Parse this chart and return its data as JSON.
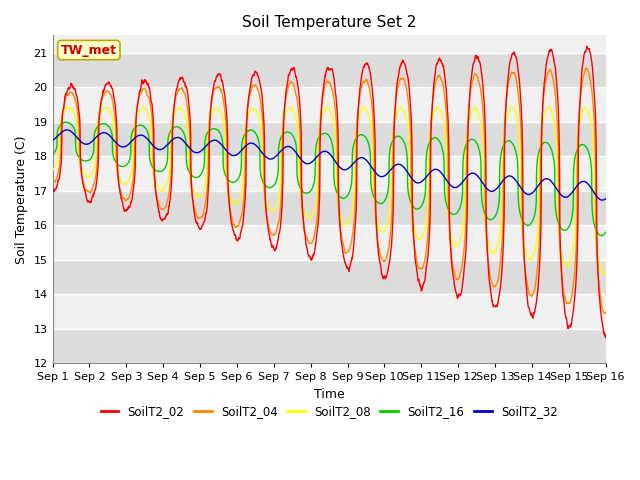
{
  "title": "Soil Temperature Set 2",
  "xlabel": "Time",
  "ylabel": "Soil Temperature (C)",
  "ylim": [
    12.0,
    21.5
  ],
  "yticks": [
    12.0,
    13.0,
    14.0,
    15.0,
    16.0,
    17.0,
    18.0,
    19.0,
    20.0,
    21.0
  ],
  "xtick_labels": [
    "Sep 1",
    "Sep 2",
    "Sep 3",
    "Sep 4",
    "Sep 5",
    "Sep 6",
    "Sep 7",
    "Sep 8",
    "Sep 9",
    "Sep 10",
    "Sep 11",
    "Sep 12",
    "Sep 13",
    "Sep 14",
    "Sep 15",
    "Sep 16"
  ],
  "annotation_text": "TW_met",
  "annotation_bg": "#ffffcc",
  "annotation_edge": "#bbaa00",
  "colors": {
    "SoilT2_02": "#ff0000",
    "SoilT2_04": "#ff8800",
    "SoilT2_08": "#ffff00",
    "SoilT2_16": "#00cc00",
    "SoilT2_32": "#0000cc"
  },
  "legend_labels": [
    "SoilT2_02",
    "SoilT2_04",
    "SoilT2_08",
    "SoilT2_16",
    "SoilT2_32"
  ],
  "bg_color": "#ffffff",
  "plot_bg_light": "#f0f0f0",
  "plot_bg_dark": "#dcdcdc",
  "grid_color": "#ffffff",
  "n_points": 2160,
  "n_days": 15
}
